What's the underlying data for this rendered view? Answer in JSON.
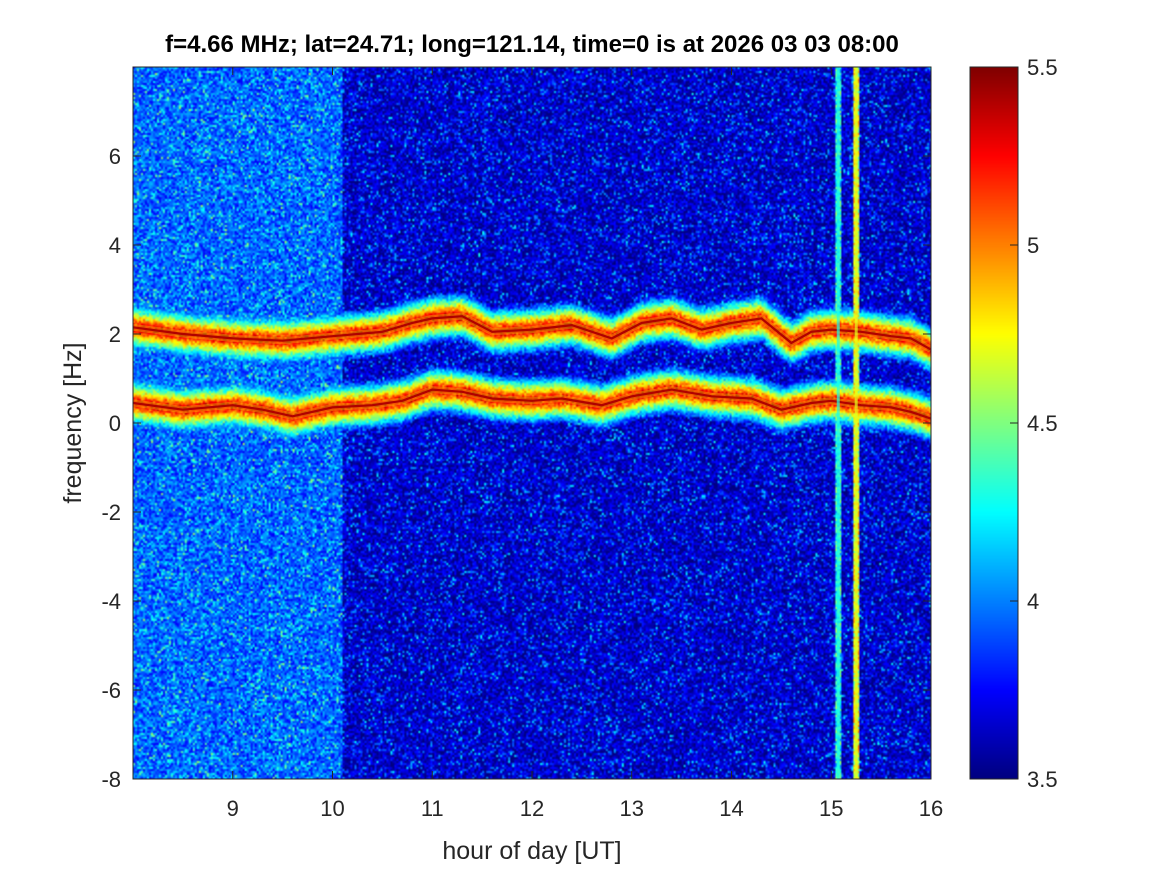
{
  "chart_data": {
    "type": "heatmap",
    "title": "f=4.66 MHz;  lat=24.71; long=121.14, time=0 is at 2026 03 03 08:00",
    "xlabel": "hour of day [UT]",
    "ylabel": "frequency [Hz]",
    "xlim": [
      8,
      16
    ],
    "ylim": [
      -8,
      8
    ],
    "x_ticks": [
      9,
      10,
      11,
      12,
      13,
      14,
      15,
      16
    ],
    "y_ticks": [
      -8,
      -6,
      -4,
      -2,
      0,
      2,
      4,
      6
    ],
    "colorbar": {
      "colormap": "jet",
      "clim": [
        3.5,
        5.5
      ],
      "ticks": [
        3.5,
        4,
        4.5,
        5,
        5.5
      ]
    },
    "background_level": {
      "before_hour": 10.1,
      "early_value": 3.9,
      "late_value": 3.6
    },
    "traces": [
      {
        "points": [
          [
            8.0,
            2.15
          ],
          [
            8.5,
            2.0
          ],
          [
            9.0,
            1.9
          ],
          [
            9.5,
            1.85
          ],
          [
            10.0,
            1.95
          ],
          [
            10.5,
            2.05
          ],
          [
            10.8,
            2.25
          ],
          [
            11.0,
            2.35
          ],
          [
            11.3,
            2.4
          ],
          [
            11.6,
            2.05
          ],
          [
            12.0,
            2.1
          ],
          [
            12.4,
            2.2
          ],
          [
            12.8,
            1.9
          ],
          [
            13.1,
            2.25
          ],
          [
            13.4,
            2.35
          ],
          [
            13.7,
            2.1
          ],
          [
            14.0,
            2.25
          ],
          [
            14.3,
            2.35
          ],
          [
            14.6,
            1.8
          ],
          [
            14.8,
            2.05
          ],
          [
            15.0,
            2.1
          ],
          [
            15.3,
            2.05
          ],
          [
            15.6,
            1.95
          ],
          [
            15.8,
            1.9
          ],
          [
            16.0,
            1.65
          ]
        ]
      },
      {
        "points": [
          [
            8.0,
            0.45
          ],
          [
            8.5,
            0.3
          ],
          [
            9.0,
            0.4
          ],
          [
            9.3,
            0.3
          ],
          [
            9.6,
            0.15
          ],
          [
            10.0,
            0.35
          ],
          [
            10.4,
            0.4
          ],
          [
            10.7,
            0.5
          ],
          [
            11.0,
            0.75
          ],
          [
            11.3,
            0.7
          ],
          [
            11.6,
            0.55
          ],
          [
            12.0,
            0.5
          ],
          [
            12.3,
            0.55
          ],
          [
            12.7,
            0.4
          ],
          [
            13.0,
            0.6
          ],
          [
            13.4,
            0.75
          ],
          [
            13.8,
            0.6
          ],
          [
            14.2,
            0.55
          ],
          [
            14.5,
            0.3
          ],
          [
            14.8,
            0.45
          ],
          [
            15.0,
            0.5
          ],
          [
            15.3,
            0.4
          ],
          [
            15.6,
            0.35
          ],
          [
            15.8,
            0.25
          ],
          [
            16.0,
            0.1
          ]
        ]
      }
    ],
    "vertical_lines": [
      {
        "x": 15.07,
        "value": 4.3
      },
      {
        "x": 15.25,
        "value": 4.7
      }
    ]
  }
}
